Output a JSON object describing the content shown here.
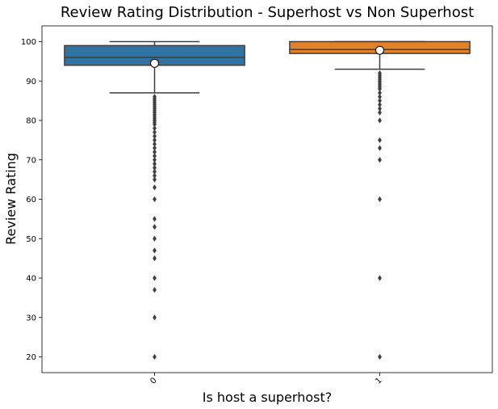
{
  "chart_data": {
    "type": "box",
    "title": "Review Rating Distribution - Superhost vs Non Superhost",
    "xlabel": "Is host a superhost?",
    "ylabel": "Review Rating",
    "categories": [
      "0",
      "1"
    ],
    "ylim": [
      16,
      104
    ],
    "yticks": [
      20,
      30,
      40,
      50,
      60,
      70,
      80,
      90,
      100
    ],
    "grid": false,
    "colors": {
      "box_0": "#3274a1",
      "box_1": "#e1812c",
      "line": "#3f3f3f"
    },
    "boxes": [
      {
        "category": "0",
        "q1": 94,
        "median": 96,
        "q3": 99,
        "whisker_low": 87,
        "whisker_high": 100,
        "mean": 94.5,
        "outliers": [
          86,
          85.5,
          85,
          84.5,
          84,
          83.5,
          83,
          82.5,
          82,
          81.5,
          81,
          80.5,
          80,
          79.5,
          79,
          78,
          77,
          76,
          75,
          74,
          73,
          72,
          71,
          70,
          69,
          68,
          67,
          66,
          65,
          63,
          60,
          55,
          53,
          50,
          47,
          45,
          40,
          37,
          30,
          20
        ]
      },
      {
        "category": "1",
        "q1": 97,
        "median": 98,
        "q3": 100,
        "whisker_low": 93,
        "whisker_high": 100,
        "mean": 97.8,
        "outliers": [
          92,
          91.5,
          91,
          90.5,
          90,
          89.5,
          89,
          88.5,
          88,
          87,
          86,
          85,
          84,
          83,
          82,
          80,
          75,
          73,
          70,
          60,
          40,
          20
        ]
      }
    ]
  }
}
